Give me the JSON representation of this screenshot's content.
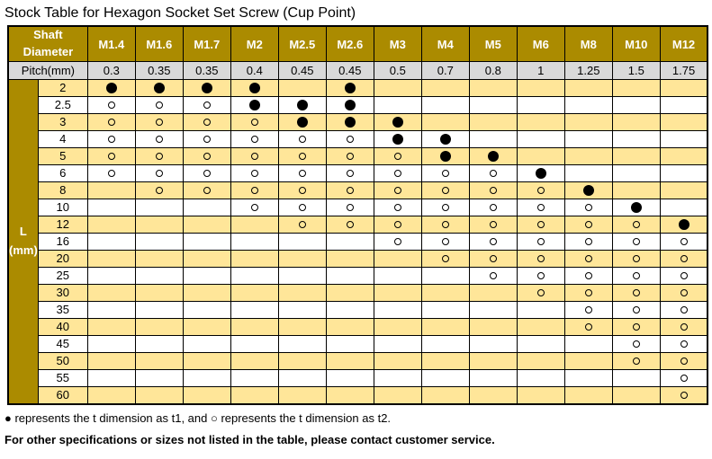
{
  "title": "Stock Table for Hexagon Socket Set Screw (Cup Point)",
  "table": {
    "corner_header_line1": "Shaft",
    "corner_header_line2": "Diameter",
    "pitch_row_label": "Pitch(mm)",
    "left_axis_label_line1": "L",
    "left_axis_label_line2": "(mm)",
    "columns": [
      "M1.4",
      "M1.6",
      "M1.7",
      "M2",
      "M2.5",
      "M2.6",
      "M3",
      "M4",
      "M5",
      "M6",
      "M8",
      "M10",
      "M12"
    ],
    "pitches": [
      "0.3",
      "0.35",
      "0.35",
      "0.4",
      "0.45",
      "0.45",
      "0.5",
      "0.7",
      "0.8",
      "1",
      "1.25",
      "1.5",
      "1.75"
    ],
    "legend": {
      "filled_symbol": "●",
      "open_symbol": "○"
    },
    "rows": [
      {
        "length": "2",
        "cells": [
          "f",
          "f",
          "f",
          "f",
          "",
          "f",
          "",
          "",
          "",
          "",
          "",
          "",
          ""
        ]
      },
      {
        "length": "2.5",
        "cells": [
          "o",
          "o",
          "o",
          "f",
          "f",
          "f",
          "",
          "",
          "",
          "",
          "",
          "",
          ""
        ]
      },
      {
        "length": "3",
        "cells": [
          "o",
          "o",
          "o",
          "o",
          "f",
          "f",
          "f",
          "",
          "",
          "",
          "",
          "",
          ""
        ]
      },
      {
        "length": "4",
        "cells": [
          "o",
          "o",
          "o",
          "o",
          "o",
          "o",
          "f",
          "f",
          "",
          "",
          "",
          "",
          ""
        ]
      },
      {
        "length": "5",
        "cells": [
          "o",
          "o",
          "o",
          "o",
          "o",
          "o",
          "o",
          "f",
          "f",
          "",
          "",
          "",
          ""
        ]
      },
      {
        "length": "6",
        "cells": [
          "o",
          "o",
          "o",
          "o",
          "o",
          "o",
          "o",
          "o",
          "o",
          "f",
          "",
          "",
          ""
        ]
      },
      {
        "length": "8",
        "cells": [
          "",
          "o",
          "o",
          "o",
          "o",
          "o",
          "o",
          "o",
          "o",
          "o",
          "f",
          "",
          ""
        ]
      },
      {
        "length": "10",
        "cells": [
          "",
          "",
          "",
          "o",
          "o",
          "o",
          "o",
          "o",
          "o",
          "o",
          "o",
          "f",
          ""
        ]
      },
      {
        "length": "12",
        "cells": [
          "",
          "",
          "",
          "",
          "o",
          "o",
          "o",
          "o",
          "o",
          "o",
          "o",
          "o",
          "f"
        ]
      },
      {
        "length": "16",
        "cells": [
          "",
          "",
          "",
          "",
          "",
          "",
          "o",
          "o",
          "o",
          "o",
          "o",
          "o",
          "o"
        ]
      },
      {
        "length": "20",
        "cells": [
          "",
          "",
          "",
          "",
          "",
          "",
          "",
          "o",
          "o",
          "o",
          "o",
          "o",
          "o"
        ]
      },
      {
        "length": "25",
        "cells": [
          "",
          "",
          "",
          "",
          "",
          "",
          "",
          "",
          "o",
          "o",
          "o",
          "o",
          "o"
        ]
      },
      {
        "length": "30",
        "cells": [
          "",
          "",
          "",
          "",
          "",
          "",
          "",
          "",
          "",
          "o",
          "o",
          "o",
          "o"
        ]
      },
      {
        "length": "35",
        "cells": [
          "",
          "",
          "",
          "",
          "",
          "",
          "",
          "",
          "",
          "",
          "o",
          "o",
          "o"
        ]
      },
      {
        "length": "40",
        "cells": [
          "",
          "",
          "",
          "",
          "",
          "",
          "",
          "",
          "",
          "",
          "o",
          "o",
          "o"
        ]
      },
      {
        "length": "45",
        "cells": [
          "",
          "",
          "",
          "",
          "",
          "",
          "",
          "",
          "",
          "",
          "",
          "o",
          "o"
        ]
      },
      {
        "length": "50",
        "cells": [
          "",
          "",
          "",
          "",
          "",
          "",
          "",
          "",
          "",
          "",
          "",
          "o",
          "o"
        ]
      },
      {
        "length": "55",
        "cells": [
          "",
          "",
          "",
          "",
          "",
          "",
          "",
          "",
          "",
          "",
          "",
          "",
          "o"
        ]
      },
      {
        "length": "60",
        "cells": [
          "",
          "",
          "",
          "",
          "",
          "",
          "",
          "",
          "",
          "",
          "",
          "",
          "o"
        ]
      }
    ]
  },
  "footer": {
    "legend_note": "● represents the t dimension as t1, and ○ represents the t dimension as t2.",
    "contact_note": "For other specifications or sizes not listed in the table, please contact customer service."
  },
  "colors": {
    "header_gold": "#AB8B00",
    "stripe_tan": "#FFE699",
    "pitch_gray": "#D9D9D9",
    "grid_black": "#000000"
  }
}
